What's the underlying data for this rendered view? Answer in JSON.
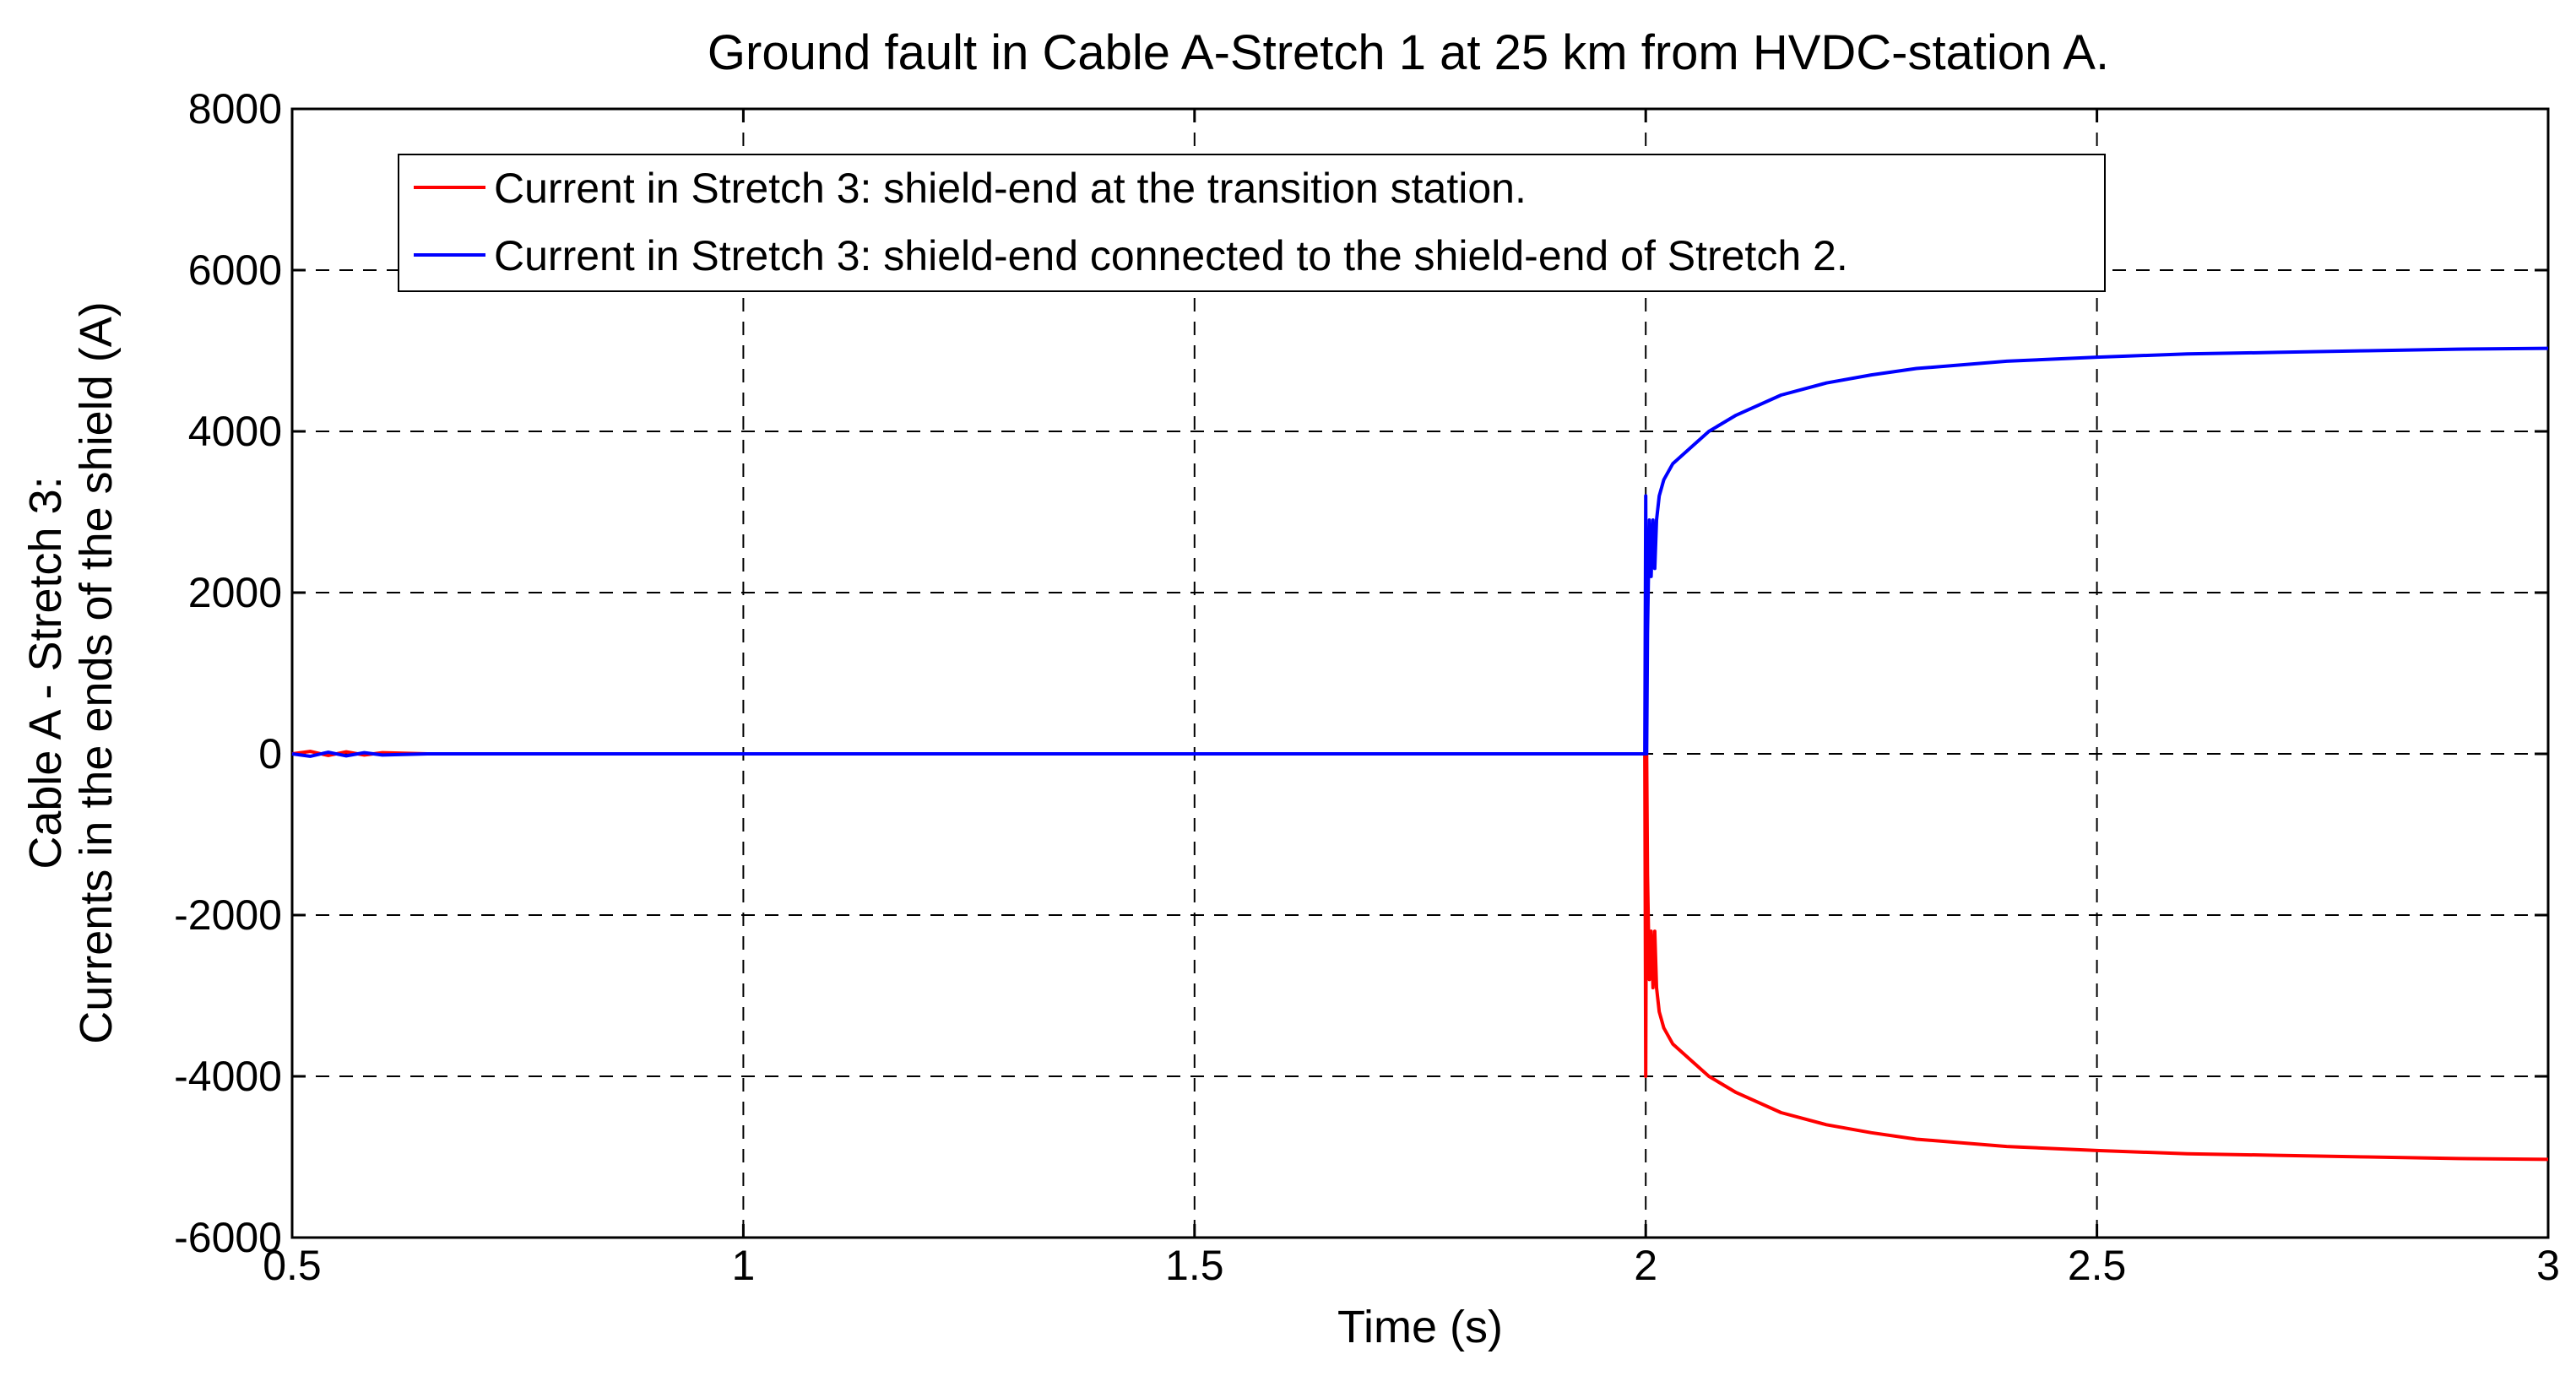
{
  "chart_data": {
    "type": "line",
    "title": "Ground fault in Cable A-Stretch 1 at 25 km from HVDC-station A.",
    "xlabel": "Time (s)",
    "ylabel_line1": "Cable A - Stretch 3:",
    "ylabel_line2": "Currents in the ends of the shield (A)",
    "xlim": [
      0.5,
      3
    ],
    "ylim": [
      -6000,
      8000
    ],
    "x_ticks": [
      0.5,
      1,
      1.5,
      2,
      2.5,
      3
    ],
    "x_tick_labels": [
      "0.5",
      "1",
      "1.5",
      "2",
      "2.5",
      "3"
    ],
    "y_ticks": [
      -6000,
      -4000,
      -2000,
      0,
      2000,
      4000,
      6000,
      8000
    ],
    "y_tick_labels": [
      "-6000",
      "-4000",
      "-2000",
      "0",
      "2000",
      "4000",
      "6000",
      "8000"
    ],
    "grid": true,
    "legend_position": "top-left",
    "series": [
      {
        "name": "Current in Stretch 3: shield-end at the transition station.",
        "color": "#ff0000",
        "x": [
          0.5,
          0.52,
          0.54,
          0.56,
          0.58,
          0.6,
          0.65,
          1.0,
          1.5,
          1.999,
          2.0,
          2.001,
          2.002,
          2.004,
          2.006,
          2.008,
          2.01,
          2.012,
          2.015,
          2.02,
          2.03,
          2.05,
          2.07,
          2.1,
          2.15,
          2.2,
          2.25,
          2.3,
          2.4,
          2.5,
          2.6,
          2.7,
          2.8,
          2.9,
          3.0
        ],
        "y": [
          0,
          30,
          -20,
          25,
          -15,
          15,
          0,
          0,
          0,
          0,
          -4000,
          0,
          -1500,
          -2800,
          -2200,
          -2900,
          -2200,
          -2900,
          -3200,
          -3400,
          -3600,
          -3800,
          -4000,
          -4200,
          -4450,
          -4600,
          -4700,
          -4780,
          -4870,
          -4920,
          -4960,
          -4980,
          -5000,
          -5020,
          -5030
        ]
      },
      {
        "name": "Current in Stretch 3: shield-end connected to the shield-end of Stretch 2.",
        "color": "#0000ff",
        "x": [
          0.5,
          0.52,
          0.54,
          0.56,
          0.58,
          0.6,
          0.65,
          1.0,
          1.5,
          1.999,
          2.0,
          2.001,
          2.002,
          2.004,
          2.006,
          2.008,
          2.01,
          2.012,
          2.015,
          2.02,
          2.03,
          2.05,
          2.07,
          2.1,
          2.15,
          2.2,
          2.25,
          2.3,
          2.4,
          2.5,
          2.6,
          2.7,
          2.8,
          2.9,
          3.0
        ],
        "y": [
          0,
          -30,
          20,
          -25,
          15,
          -15,
          0,
          0,
          0,
          0,
          3200,
          0,
          1500,
          2900,
          2200,
          2900,
          2300,
          2900,
          3200,
          3400,
          3600,
          3800,
          4000,
          4200,
          4450,
          4600,
          4700,
          4780,
          4870,
          4920,
          4960,
          4980,
          5000,
          5020,
          5030
        ]
      }
    ]
  }
}
